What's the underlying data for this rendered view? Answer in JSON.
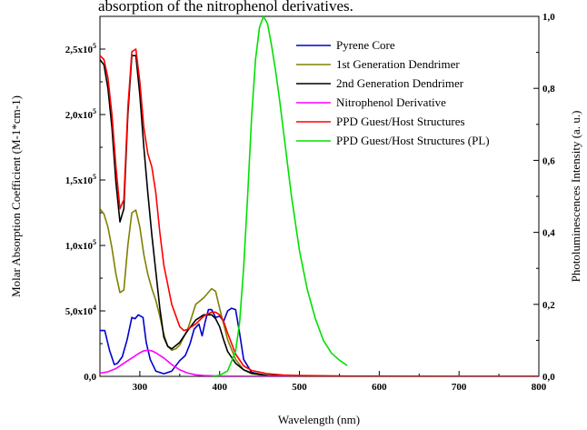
{
  "caption": "absorption of the nitrophenol derivatives.",
  "chart_data": {
    "type": "line",
    "xlabel": "Wavelength (nm)",
    "ylabel": "Molar Absorption Coefficient (M-1*cm-1)",
    "y2label": "Photoluminescences Intensity (a. u.)",
    "xlim": [
      250,
      800
    ],
    "ylim": [
      0,
      275000
    ],
    "y2lim": [
      0,
      1.0
    ],
    "xticks": [
      {
        "value": 300,
        "label": "300"
      },
      {
        "value": 400,
        "label": "400"
      },
      {
        "value": 500,
        "label": "500"
      },
      {
        "value": 600,
        "label": "600"
      },
      {
        "value": 700,
        "label": "700"
      },
      {
        "value": 800,
        "label": "800"
      }
    ],
    "yticks": [
      {
        "value": 0,
        "mantissa": "0,0",
        "exp": ""
      },
      {
        "value": 50000,
        "mantissa": "5,0x10",
        "exp": "4"
      },
      {
        "value": 100000,
        "mantissa": "1,0x10",
        "exp": "5"
      },
      {
        "value": 150000,
        "mantissa": "1,5x10",
        "exp": "5"
      },
      {
        "value": 200000,
        "mantissa": "2,0x10",
        "exp": "5"
      },
      {
        "value": 250000,
        "mantissa": "2,5x10",
        "exp": "5"
      }
    ],
    "y2ticks": [
      {
        "value": 0,
        "label": "0,0"
      },
      {
        "value": 0.2,
        "label": "0,2"
      },
      {
        "value": 0.4,
        "label": "0,4"
      },
      {
        "value": 0.6,
        "label": "0,6"
      },
      {
        "value": 0.8,
        "label": "0,8"
      },
      {
        "value": 1.0,
        "label": "1,0"
      }
    ],
    "legend_position": "top-right",
    "grid": false,
    "series": [
      {
        "name": "Pyrene Core",
        "color": "#0000cc",
        "axis": "left",
        "x": [
          250,
          256,
          262,
          268,
          272,
          278,
          284,
          290,
          294,
          298,
          304,
          308,
          313,
          320,
          330,
          340,
          350,
          357,
          363,
          368,
          374,
          378,
          382,
          386,
          390,
          395,
          400,
          405,
          410,
          415,
          420,
          425,
          430,
          440,
          460,
          500,
          600,
          700,
          800
        ],
        "values": [
          35000,
          35000,
          20000,
          9000,
          10000,
          15000,
          28000,
          45000,
          44000,
          47000,
          45000,
          26000,
          13000,
          4000,
          2000,
          4000,
          12000,
          16000,
          25000,
          36000,
          40000,
          31000,
          42000,
          51000,
          51000,
          45000,
          46000,
          42000,
          50000,
          52000,
          51000,
          33000,
          13000,
          3000,
          500,
          0,
          0,
          0,
          0
        ]
      },
      {
        "name": "1st Generation Dendrimer",
        "color": "#808000",
        "axis": "left",
        "x": [
          250,
          255,
          260,
          265,
          270,
          275,
          280,
          285,
          290,
          295,
          300,
          305,
          310,
          315,
          320,
          325,
          330,
          335,
          340,
          345,
          350,
          360,
          370,
          380,
          390,
          395,
          400,
          405,
          410,
          420,
          430,
          440,
          460,
          500,
          600,
          700,
          800
        ],
        "values": [
          128000,
          124000,
          114000,
          98000,
          78000,
          64000,
          66000,
          100000,
          125000,
          127000,
          114000,
          93000,
          78000,
          67000,
          58000,
          46000,
          32000,
          23000,
          20000,
          21000,
          24000,
          36000,
          55000,
          60000,
          67000,
          65000,
          52000,
          40000,
          28000,
          13000,
          5000,
          2000,
          500,
          0,
          0,
          0,
          0
        ]
      },
      {
        "name": "2nd Generation Dendrimer",
        "color": "#000000",
        "axis": "left",
        "x": [
          250,
          255,
          260,
          265,
          270,
          275,
          280,
          285,
          290,
          295,
          300,
          305,
          310,
          315,
          320,
          325,
          330,
          335,
          340,
          350,
          360,
          370,
          380,
          390,
          395,
          400,
          405,
          410,
          420,
          430,
          440,
          460,
          500,
          600,
          700,
          800
        ],
        "values": [
          242000,
          238000,
          220000,
          190000,
          148000,
          118000,
          128000,
          200000,
          245000,
          245000,
          215000,
          175000,
          140000,
          108000,
          80000,
          52000,
          30000,
          23000,
          21000,
          26000,
          35000,
          43000,
          47000,
          47000,
          44000,
          38000,
          28000,
          19000,
          10000,
          5000,
          2500,
          600,
          0,
          0,
          0,
          0
        ]
      },
      {
        "name": "Nitrophenol Derivative",
        "color": "#ff00ff",
        "axis": "left",
        "x": [
          250,
          260,
          270,
          280,
          290,
          300,
          305,
          310,
          315,
          320,
          330,
          340,
          350,
          360,
          370,
          380,
          400,
          500,
          600,
          700,
          800
        ],
        "values": [
          2500,
          3500,
          6000,
          10000,
          14000,
          18000,
          19500,
          20000,
          19500,
          18000,
          14000,
          9000,
          5000,
          2500,
          1200,
          600,
          200,
          0,
          0,
          0,
          0
        ]
      },
      {
        "name": "PPD Guest/Host Structures",
        "color": "#ff0000",
        "axis": "left",
        "x": [
          250,
          255,
          260,
          265,
          270,
          275,
          280,
          285,
          290,
          295,
          300,
          305,
          310,
          315,
          320,
          325,
          330,
          340,
          350,
          355,
          360,
          370,
          380,
          390,
          395,
          400,
          405,
          410,
          420,
          430,
          440,
          460,
          480,
          500,
          550,
          600,
          700,
          800
        ],
        "values": [
          245000,
          242000,
          228000,
          200000,
          160000,
          128000,
          135000,
          205000,
          248000,
          250000,
          225000,
          190000,
          170000,
          160000,
          140000,
          110000,
          85000,
          55000,
          38000,
          35000,
          36000,
          40000,
          46000,
          49000,
          49000,
          47000,
          42000,
          33000,
          17000,
          8000,
          4500,
          2000,
          1000,
          600,
          300,
          200,
          100,
          100
        ]
      },
      {
        "name": "PPD Guest/Host Structures (PL)",
        "color": "#00e000",
        "axis": "right",
        "x": [
          390,
          400,
          410,
          420,
          425,
          430,
          435,
          440,
          445,
          450,
          455,
          460,
          465,
          470,
          475,
          480,
          490,
          500,
          510,
          520,
          530,
          540,
          550,
          560
        ],
        "values": [
          0.0,
          0.003,
          0.015,
          0.07,
          0.15,
          0.3,
          0.5,
          0.72,
          0.88,
          0.97,
          1.0,
          0.98,
          0.92,
          0.85,
          0.77,
          0.68,
          0.5,
          0.35,
          0.24,
          0.16,
          0.1,
          0.065,
          0.045,
          0.03
        ]
      }
    ]
  }
}
